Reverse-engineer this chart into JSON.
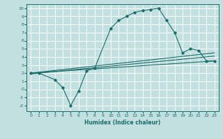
{
  "xlabel": "Humidex (Indice chaleur)",
  "bg_color": "#c2e0e0",
  "grid_color": "#ffffff",
  "line_color": "#1a6b6b",
  "xlim": [
    -0.5,
    23.5
  ],
  "ylim": [
    -2.7,
    10.5
  ],
  "xticks": [
    0,
    1,
    2,
    3,
    4,
    5,
    6,
    7,
    8,
    9,
    10,
    11,
    12,
    13,
    14,
    15,
    16,
    17,
    18,
    19,
    20,
    21,
    22,
    23
  ],
  "yticks": [
    -2,
    -1,
    0,
    1,
    2,
    3,
    4,
    5,
    6,
    7,
    8,
    9,
    10
  ],
  "curve1_x": [
    0,
    1,
    3,
    4,
    5,
    6,
    7,
    8,
    10,
    11,
    12,
    13,
    14,
    15,
    16,
    17,
    18,
    19,
    20,
    21,
    22,
    23
  ],
  "curve1_y": [
    2,
    2,
    1.2,
    0.2,
    -2,
    -0.2,
    2.3,
    2.6,
    7.5,
    8.5,
    9,
    9.5,
    9.7,
    9.85,
    10,
    8.5,
    7,
    4.5,
    5,
    4.8,
    3.5,
    3.5
  ],
  "line1_x": [
    0,
    23
  ],
  "line1_y": [
    2,
    3.5
  ],
  "line2_x": [
    0,
    23
  ],
  "line2_y": [
    2.0,
    4.5
  ],
  "line3_x": [
    0,
    23
  ],
  "line3_y": [
    1.9,
    4.1
  ]
}
